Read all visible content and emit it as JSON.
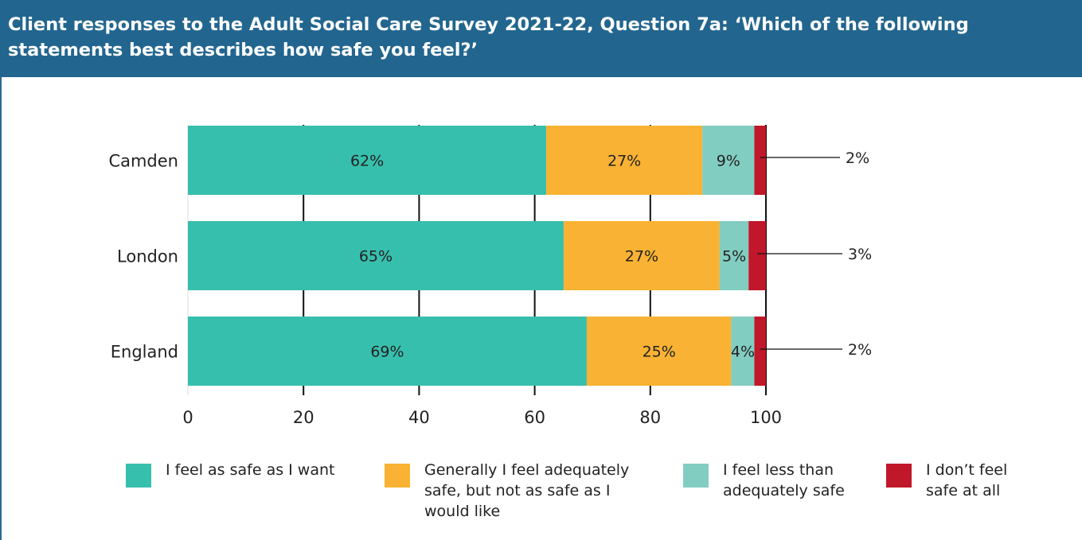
{
  "header": {
    "title": "Client responses to the Adult Social Care Survey 2021-22, Question 7a: ‘Which of the following statements best describes how safe you feel?’"
  },
  "colors": {
    "header_bg": "#22668f",
    "safe_as_want": "#37bfad",
    "generally_adequate": "#f9b233",
    "less_than_adequate": "#82cdc1",
    "not_safe": "#c0172a"
  },
  "chart_data": {
    "type": "bar",
    "orientation": "horizontal",
    "stacked": true,
    "categories": [
      "Camden",
      "London",
      "England"
    ],
    "series": [
      {
        "name": "I feel as safe as I want",
        "values": [
          62,
          65,
          69
        ],
        "labels": [
          "62%",
          "65%",
          "69%"
        ],
        "color": "#37bfad"
      },
      {
        "name": "Generally I feel adequately safe, but not as safe as I would like",
        "values": [
          27,
          27,
          25
        ],
        "labels": [
          "27%",
          "27%",
          "25%"
        ],
        "color": "#f9b233"
      },
      {
        "name": "I feel less than adequately safe",
        "values": [
          9,
          5,
          4
        ],
        "labels": [
          "9%",
          "5%",
          "4%"
        ],
        "color": "#82cdc1"
      },
      {
        "name": "I don’t feel safe at all",
        "values": [
          2,
          3,
          2
        ],
        "labels": [
          "2%",
          "3%",
          "2%"
        ],
        "color": "#c0172a"
      }
    ],
    "xlim": [
      0,
      100
    ],
    "xticks": [
      "0",
      "20",
      "40",
      "60",
      "80",
      "100"
    ],
    "xlabel": "",
    "ylabel": "",
    "grid": true,
    "legend_position": "bottom"
  }
}
